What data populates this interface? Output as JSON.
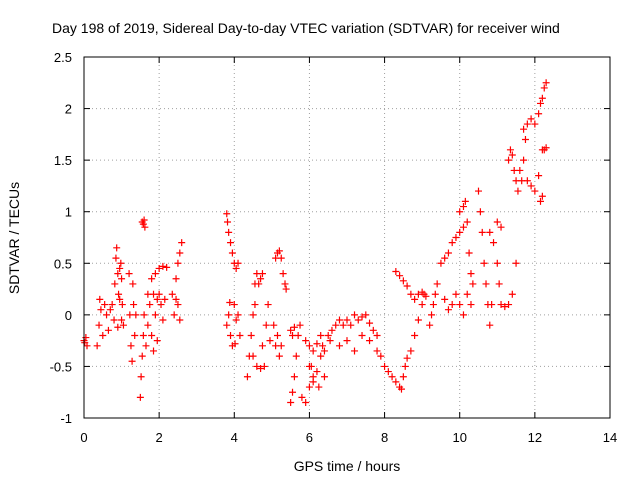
{
  "chart_data": {
    "type": "scatter",
    "title": "Day 198 of 2019, Sidereal Day-to-day VTEC variation (SDTVAR) for receiver wind",
    "xlabel": "GPS time / hours",
    "ylabel": "SDTVAR / TECUs",
    "xlim": [
      0,
      14
    ],
    "ylim": [
      -1,
      2.5
    ],
    "xticks": [
      "0",
      "2",
      "4",
      "6",
      "8",
      "10",
      "12",
      "14"
    ],
    "yticks": [
      "-1",
      "-0.5",
      "0",
      "0.5",
      "1",
      "1.5",
      "2",
      "2.5"
    ],
    "grid": true,
    "marker": "+",
    "color": "#ff0000",
    "series": [
      {
        "points": [
          [
            0.0,
            -0.25
          ],
          [
            0.02,
            -0.27
          ],
          [
            0.05,
            -0.22
          ],
          [
            0.08,
            -0.3
          ],
          [
            0.35,
            -0.3
          ],
          [
            0.4,
            -0.1
          ],
          [
            0.42,
            0.15
          ],
          [
            0.45,
            0.05
          ],
          [
            0.5,
            -0.2
          ],
          [
            0.55,
            0.1
          ],
          [
            0.6,
            0.0
          ],
          [
            0.65,
            -0.15
          ],
          [
            0.7,
            0.05
          ],
          [
            0.75,
            0.1
          ],
          [
            0.8,
            -0.05
          ],
          [
            0.82,
            0.3
          ],
          [
            0.85,
            0.55
          ],
          [
            0.87,
            0.65
          ],
          [
            0.9,
            0.4
          ],
          [
            0.92,
            0.2
          ],
          [
            0.95,
            0.45
          ],
          [
            0.98,
            0.5
          ],
          [
            1.0,
            0.35
          ],
          [
            1.02,
            0.1
          ],
          [
            1.05,
            -0.1
          ],
          [
            1.0,
            -0.05
          ],
          [
            0.9,
            -0.12
          ],
          [
            0.95,
            0.15
          ],
          [
            1.2,
            0.4
          ],
          [
            1.22,
            0.0
          ],
          [
            1.25,
            -0.3
          ],
          [
            1.28,
            -0.45
          ],
          [
            1.3,
            0.3
          ],
          [
            1.32,
            0.1
          ],
          [
            1.35,
            -0.2
          ],
          [
            1.38,
            0.0
          ],
          [
            1.5,
            -0.8
          ],
          [
            1.52,
            -0.6
          ],
          [
            1.55,
            -0.4
          ],
          [
            1.58,
            -0.2
          ],
          [
            1.6,
            0.0
          ],
          [
            1.55,
            0.9
          ],
          [
            1.58,
            0.88
          ],
          [
            1.6,
            0.92
          ],
          [
            1.62,
            0.85
          ],
          [
            1.65,
            -0.3
          ],
          [
            1.7,
            -0.1
          ],
          [
            1.75,
            0.1
          ],
          [
            1.8,
            -0.2
          ],
          [
            1.85,
            0.2
          ],
          [
            1.9,
            0.0
          ],
          [
            1.95,
            0.15
          ],
          [
            1.7,
            0.2
          ],
          [
            1.8,
            0.35
          ],
          [
            1.9,
            0.4
          ],
          [
            2.0,
            0.45
          ],
          [
            2.1,
            0.47
          ],
          [
            2.2,
            0.46
          ],
          [
            2.0,
            0.2
          ],
          [
            2.05,
            0.1
          ],
          [
            2.1,
            -0.05
          ],
          [
            2.15,
            0.15
          ],
          [
            1.85,
            -0.35
          ],
          [
            1.95,
            -0.25
          ],
          [
            2.35,
            0.2
          ],
          [
            2.4,
            0.0
          ],
          [
            2.45,
            0.35
          ],
          [
            2.5,
            0.5
          ],
          [
            2.55,
            0.6
          ],
          [
            2.6,
            0.7
          ],
          [
            2.5,
            0.1
          ],
          [
            2.55,
            -0.05
          ],
          [
            2.45,
            0.15
          ],
          [
            3.8,
            0.98
          ],
          [
            3.82,
            0.9
          ],
          [
            3.85,
            0.8
          ],
          [
            3.9,
            0.7
          ],
          [
            3.95,
            0.6
          ],
          [
            4.0,
            0.5
          ],
          [
            4.05,
            0.45
          ],
          [
            4.1,
            0.5
          ],
          [
            3.8,
            -0.1
          ],
          [
            3.85,
            0.0
          ],
          [
            3.9,
            -0.2
          ],
          [
            3.95,
            -0.3
          ],
          [
            4.0,
            0.1
          ],
          [
            4.05,
            -0.05
          ],
          [
            4.1,
            0.0
          ],
          [
            4.15,
            -0.2
          ],
          [
            3.88,
            0.12
          ],
          [
            4.02,
            -0.28
          ],
          [
            4.35,
            -0.6
          ],
          [
            4.4,
            -0.4
          ],
          [
            4.45,
            -0.2
          ],
          [
            4.5,
            0.0
          ],
          [
            4.55,
            0.3
          ],
          [
            4.6,
            0.4
          ],
          [
            4.65,
            0.3
          ],
          [
            4.7,
            0.35
          ],
          [
            4.75,
            0.4
          ],
          [
            4.5,
            -0.4
          ],
          [
            4.6,
            -0.5
          ],
          [
            4.7,
            -0.52
          ],
          [
            4.8,
            -0.5
          ],
          [
            4.75,
            -0.3
          ],
          [
            4.85,
            -0.1
          ],
          [
            4.9,
            0.1
          ],
          [
            4.95,
            -0.25
          ],
          [
            4.55,
            0.1
          ],
          [
            5.1,
            0.55
          ],
          [
            5.15,
            0.6
          ],
          [
            5.2,
            0.62
          ],
          [
            5.25,
            0.55
          ],
          [
            5.3,
            0.4
          ],
          [
            5.35,
            0.3
          ],
          [
            5.38,
            0.25
          ],
          [
            5.05,
            -0.1
          ],
          [
            5.1,
            -0.3
          ],
          [
            5.15,
            -0.2
          ],
          [
            5.2,
            -0.4
          ],
          [
            5.25,
            -0.3
          ],
          [
            5.5,
            -0.85
          ],
          [
            5.55,
            -0.75
          ],
          [
            5.6,
            -0.6
          ],
          [
            5.65,
            -0.4
          ],
          [
            5.7,
            -0.2
          ],
          [
            5.75,
            -0.1
          ],
          [
            5.5,
            -0.15
          ],
          [
            5.55,
            -0.2
          ],
          [
            5.6,
            -0.12
          ],
          [
            5.8,
            -0.8
          ],
          [
            5.9,
            -0.85
          ],
          [
            6.0,
            -0.7
          ],
          [
            6.05,
            -0.5
          ],
          [
            6.1,
            -0.6
          ],
          [
            6.2,
            -0.55
          ],
          [
            6.3,
            -0.4
          ],
          [
            6.35,
            -0.3
          ],
          [
            6.4,
            -0.35
          ],
          [
            6.5,
            -0.2
          ],
          [
            6.55,
            -0.25
          ],
          [
            6.6,
            -0.15
          ],
          [
            5.9,
            -0.25
          ],
          [
            6.0,
            -0.3
          ],
          [
            6.1,
            -0.35
          ],
          [
            6.2,
            -0.28
          ],
          [
            6.3,
            -0.2
          ],
          [
            6.0,
            -0.5
          ],
          [
            6.25,
            -0.7
          ],
          [
            6.4,
            -0.6
          ],
          [
            6.1,
            -0.65
          ],
          [
            6.7,
            -0.1
          ],
          [
            6.8,
            -0.05
          ],
          [
            6.9,
            -0.1
          ],
          [
            7.0,
            -0.05
          ],
          [
            7.1,
            -0.1
          ],
          [
            7.2,
            0.0
          ],
          [
            7.3,
            -0.05
          ],
          [
            7.4,
            -0.02
          ],
          [
            7.5,
            0.0
          ],
          [
            7.6,
            -0.08
          ],
          [
            7.7,
            -0.15
          ],
          [
            7.8,
            -0.2
          ],
          [
            6.8,
            -0.3
          ],
          [
            7.0,
            -0.25
          ],
          [
            7.2,
            -0.35
          ],
          [
            7.4,
            -0.2
          ],
          [
            7.6,
            -0.25
          ],
          [
            7.8,
            -0.35
          ],
          [
            7.9,
            -0.4
          ],
          [
            8.0,
            -0.5
          ],
          [
            8.1,
            -0.55
          ],
          [
            8.2,
            -0.6
          ],
          [
            8.3,
            -0.65
          ],
          [
            8.4,
            -0.7
          ],
          [
            8.45,
            -0.72
          ],
          [
            8.5,
            -0.6
          ],
          [
            8.55,
            -0.5
          ],
          [
            8.6,
            -0.42
          ],
          [
            8.7,
            -0.35
          ],
          [
            8.8,
            -0.2
          ],
          [
            8.9,
            -0.05
          ],
          [
            9.0,
            0.1
          ],
          [
            9.05,
            0.2
          ],
          [
            9.1,
            0.18
          ],
          [
            8.3,
            0.42
          ],
          [
            8.4,
            0.38
          ],
          [
            8.5,
            0.33
          ],
          [
            8.6,
            0.28
          ],
          [
            8.7,
            0.2
          ],
          [
            8.8,
            0.15
          ],
          [
            8.9,
            0.2
          ],
          [
            9.0,
            0.22
          ],
          [
            9.2,
            -0.1
          ],
          [
            9.25,
            0.0
          ],
          [
            9.3,
            0.1
          ],
          [
            9.35,
            0.2
          ],
          [
            9.4,
            0.3
          ],
          [
            9.5,
            0.5
          ],
          [
            9.6,
            0.55
          ],
          [
            9.7,
            0.6
          ],
          [
            9.8,
            0.7
          ],
          [
            9.9,
            0.75
          ],
          [
            10.0,
            0.8
          ],
          [
            10.1,
            0.85
          ],
          [
            9.6,
            0.15
          ],
          [
            9.7,
            0.05
          ],
          [
            9.8,
            0.1
          ],
          [
            9.9,
            0.2
          ],
          [
            10.0,
            0.1
          ],
          [
            10.1,
            0.0
          ],
          [
            10.2,
            0.2
          ],
          [
            10.3,
            0.1
          ],
          [
            10.0,
            1.0
          ],
          [
            10.1,
            1.05
          ],
          [
            10.15,
            1.1
          ],
          [
            10.2,
            0.9
          ],
          [
            10.25,
            0.6
          ],
          [
            10.3,
            0.4
          ],
          [
            10.35,
            0.3
          ],
          [
            10.5,
            1.2
          ],
          [
            10.55,
            1.0
          ],
          [
            10.6,
            0.8
          ],
          [
            10.65,
            0.5
          ],
          [
            10.7,
            0.3
          ],
          [
            10.75,
            0.1
          ],
          [
            10.8,
            -0.1
          ],
          [
            10.85,
            0.1
          ],
          [
            10.8,
            0.8
          ],
          [
            10.9,
            0.7
          ],
          [
            11.0,
            0.9
          ],
          [
            11.1,
            0.85
          ],
          [
            11.0,
            0.5
          ],
          [
            11.05,
            0.3
          ],
          [
            11.1,
            0.1
          ],
          [
            11.2,
            0.08
          ],
          [
            11.3,
            0.1
          ],
          [
            11.4,
            0.2
          ],
          [
            11.5,
            0.5
          ],
          [
            11.3,
            1.5
          ],
          [
            11.35,
            1.6
          ],
          [
            11.4,
            1.55
          ],
          [
            11.45,
            1.4
          ],
          [
            11.5,
            1.3
          ],
          [
            11.55,
            1.2
          ],
          [
            11.6,
            1.4
          ],
          [
            11.65,
            1.3
          ],
          [
            11.7,
            1.5
          ],
          [
            11.75,
            1.7
          ],
          [
            11.7,
            1.8
          ],
          [
            11.8,
            1.85
          ],
          [
            11.9,
            1.9
          ],
          [
            12.0,
            1.85
          ],
          [
            11.8,
            1.3
          ],
          [
            11.9,
            1.25
          ],
          [
            12.0,
            1.2
          ],
          [
            12.1,
            1.35
          ],
          [
            12.1,
            1.95
          ],
          [
            12.15,
            2.05
          ],
          [
            12.2,
            2.1
          ],
          [
            12.25,
            2.2
          ],
          [
            12.3,
            2.25
          ],
          [
            12.2,
            1.6
          ],
          [
            12.25,
            1.6
          ],
          [
            12.3,
            1.62
          ],
          [
            12.15,
            1.1
          ],
          [
            12.2,
            1.15
          ]
        ]
      }
    ]
  }
}
